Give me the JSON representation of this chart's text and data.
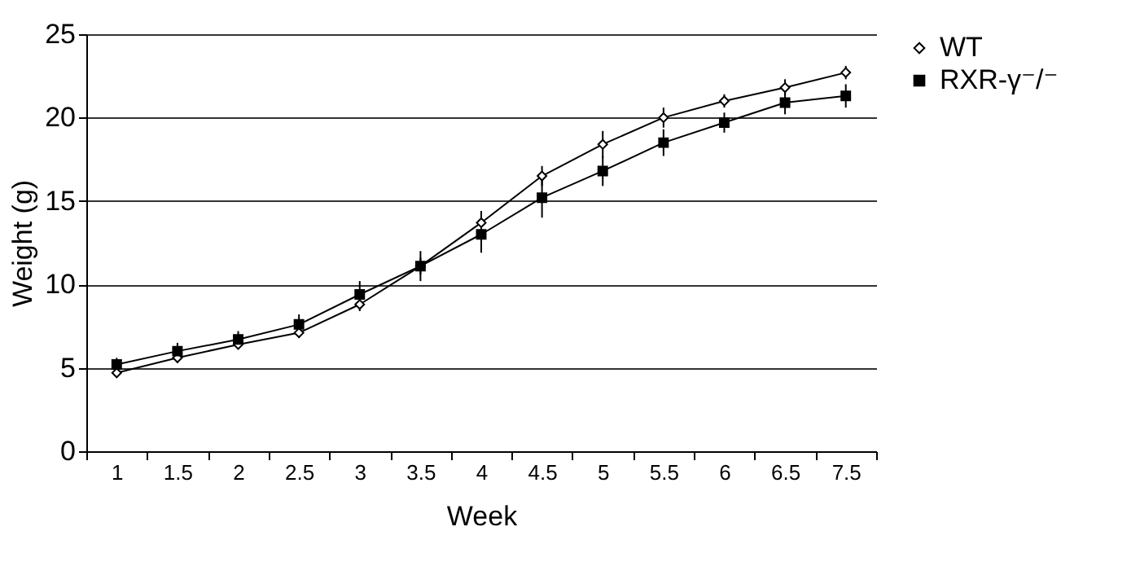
{
  "chart_data": {
    "type": "line",
    "xlabel": "Week",
    "ylabel": "Weight (g)",
    "categories": [
      "1",
      "1.5",
      "2",
      "2.5",
      "3",
      "3.5",
      "4",
      "4.5",
      "5",
      "5.5",
      "6",
      "6.5",
      "7.5"
    ],
    "series": [
      {
        "name": "WT",
        "color": "#000000",
        "marker": "diamond",
        "values": [
          4.7,
          5.6,
          6.4,
          7.1,
          8.8,
          11.1,
          13.7,
          16.5,
          18.4,
          20.0,
          21.0,
          21.8,
          22.7
        ],
        "errors": [
          0.2,
          0.3,
          0.3,
          0.3,
          0.4,
          0.5,
          0.7,
          0.6,
          0.8,
          0.6,
          0.4,
          0.5,
          0.4
        ]
      },
      {
        "name": "RXR-γ⁻/⁻",
        "color": "#000000",
        "marker": "square",
        "values": [
          5.2,
          6.0,
          6.7,
          7.6,
          9.4,
          11.1,
          13.0,
          15.2,
          16.8,
          18.5,
          19.7,
          20.9,
          21.3
        ],
        "errors": [
          0.4,
          0.5,
          0.5,
          0.6,
          0.8,
          0.9,
          1.1,
          1.2,
          0.9,
          0.8,
          0.6,
          0.7,
          0.7
        ]
      }
    ],
    "ylim": [
      0,
      25
    ],
    "yticks": [
      0,
      5,
      10,
      15,
      20,
      25
    ],
    "grid": "y",
    "legend": "right",
    "line_style": "solid"
  }
}
